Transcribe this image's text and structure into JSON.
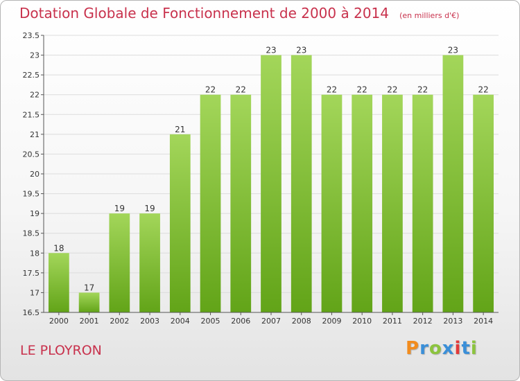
{
  "header": {
    "title": "Dotation Globale de Fonctionnement de 2000 à 2014",
    "unit": "(en milliers d'€)"
  },
  "footer": {
    "commune": "LE PLOYRON",
    "brand": "Proxiti",
    "brand_colors": [
      "#f28c1e",
      "#3a8fd8",
      "#8cc43e",
      "#3a8fd8",
      "#e23a3a",
      "#3a8fd8",
      "#8cc43e"
    ]
  },
  "colors": {
    "title": "#c8314c",
    "bar_top": "#a3d65a",
    "bar_bottom": "#62a418",
    "grid": "#dcdcdc",
    "axis": "#555555"
  },
  "chart_data": {
    "type": "bar",
    "categories": [
      "2000",
      "2001",
      "2002",
      "2003",
      "2004",
      "2005",
      "2006",
      "2007",
      "2008",
      "2009",
      "2010",
      "2011",
      "2012",
      "2013",
      "2014"
    ],
    "values": [
      18,
      17,
      19,
      19,
      21,
      22,
      22,
      23,
      23,
      22,
      22,
      22,
      22,
      23,
      22
    ],
    "ylim": [
      16.5,
      23.5
    ],
    "yticks": [
      "16.5",
      "17",
      "17.5",
      "18",
      "18.5",
      "19",
      "19.5",
      "20",
      "20.5",
      "21",
      "21.5",
      "22",
      "22.5",
      "23",
      "23.5"
    ],
    "grid": true
  }
}
